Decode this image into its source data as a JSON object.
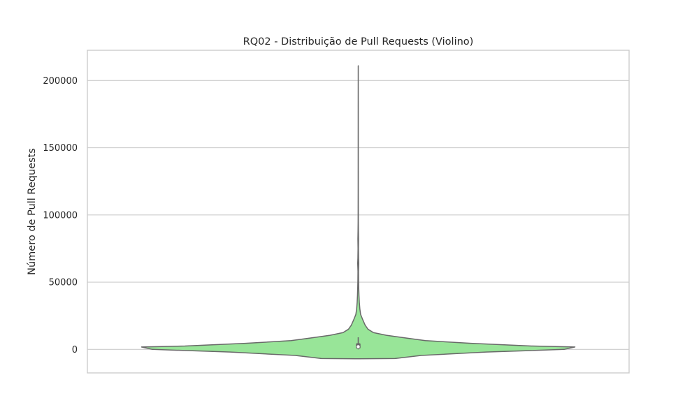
{
  "chart_data": {
    "type": "violin",
    "title": "RQ02 - Distribuição de Pull Requests (Violino)",
    "xlabel": "",
    "ylabel": "Número de Pull Requests",
    "ylim": [
      -17500,
      222500
    ],
    "y_ticks": [
      0,
      50000,
      100000,
      150000,
      200000
    ],
    "y_tick_labels": [
      "0",
      "50000",
      "100000",
      "150000",
      "200000"
    ],
    "grid": "horizontal",
    "colors": {
      "fill": "#98e598",
      "outline": "#696969",
      "box": "#696969",
      "median": "#ffffff",
      "grid": "#cccccc",
      "frame": "#cccccc"
    },
    "density_profile": [
      {
        "y": -7000,
        "w": 0.0
      },
      {
        "y": -6800,
        "w": 0.17
      },
      {
        "y": -4500,
        "w": 0.29
      },
      {
        "y": -2000,
        "w": 0.59
      },
      {
        "y": 0,
        "w": 0.95
      },
      {
        "y": 1800,
        "w": 1.0
      },
      {
        "y": 2500,
        "w": 0.8
      },
      {
        "y": 4500,
        "w": 0.52
      },
      {
        "y": 6500,
        "w": 0.31
      },
      {
        "y": 8500,
        "w": 0.22
      },
      {
        "y": 10500,
        "w": 0.13
      },
      {
        "y": 12500,
        "w": 0.07
      },
      {
        "y": 15000,
        "w": 0.045
      },
      {
        "y": 18000,
        "w": 0.032
      },
      {
        "y": 22000,
        "w": 0.021
      },
      {
        "y": 26000,
        "w": 0.011
      },
      {
        "y": 30000,
        "w": 0.0075
      },
      {
        "y": 35000,
        "w": 0.005
      },
      {
        "y": 40000,
        "w": 0.0035
      },
      {
        "y": 45000,
        "w": 0.0025
      },
      {
        "y": 52000,
        "w": 0.0015
      },
      {
        "y": 58000,
        "w": 0.0012
      },
      {
        "y": 64000,
        "w": 0.0025
      },
      {
        "y": 68000,
        "w": 0.0015
      },
      {
        "y": 75000,
        "w": 0.0009
      },
      {
        "y": 82000,
        "w": 0.0015
      },
      {
        "y": 88000,
        "w": 0.0009
      },
      {
        "y": 95000,
        "w": 0.0005
      },
      {
        "y": 105000,
        "w": 0.0004
      },
      {
        "y": 120000,
        "w": 0.00025
      },
      {
        "y": 150000,
        "w": 0.00018
      },
      {
        "y": 180000,
        "w": 0.00012
      },
      {
        "y": 211000,
        "w": 0.0
      }
    ],
    "box": {
      "whisker_low": 0,
      "q1": 600,
      "median": 2000,
      "q3": 4600,
      "whisker_high": 9000
    }
  }
}
